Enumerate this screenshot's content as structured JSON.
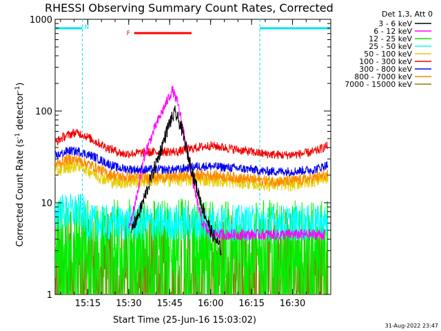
{
  "chart_data": {
    "type": "line",
    "title": "RHESSI Observing Summary Count Rates, Corrected",
    "xlabel": "Start Time (25-Jun-16 15:03:02)",
    "ylabel": "Corrected Count Rate (s⁻¹ detector⁻¹)",
    "ylabel_main": "Corrected Count Rate (s",
    "ylabel_sup1": "-1",
    "ylabel_mid": " detector",
    "ylabel_sup2": "-1",
    "ylabel_end": ")",
    "yscale": "log",
    "ylim": [
      1,
      1000
    ],
    "xlim": [
      "15:03:02",
      "16:44:00"
    ],
    "x_ticks": [
      "15:15",
      "15:30",
      "15:45",
      "16:00",
      "16:15",
      "16:30"
    ],
    "y_ticks": [
      "1",
      "10",
      "100",
      "1000"
    ],
    "legend_title": "Det 1,3, Att 0",
    "legend_position": "right",
    "timestamp": "31-Aug-2022 23:47",
    "markers": {
      "night_color": "#00e5ee",
      "night_label": "N",
      "flare_label": "F",
      "flare_color": "#ff0000",
      "night_intervals": [
        [
          "15:03",
          "15:13"
        ],
        [
          "16:18",
          "16:44"
        ]
      ],
      "flare_interval": [
        "15:32",
        "15:53"
      ]
    },
    "series": [
      {
        "name": "3 - 6 keV",
        "color": "#000000",
        "points": [
          [
            "15:31",
            5
          ],
          [
            "15:34",
            8
          ],
          [
            "15:38",
            18
          ],
          [
            "15:42",
            40
          ],
          [
            "15:45",
            75
          ],
          [
            "15:47",
            95
          ],
          [
            "15:49",
            70
          ],
          [
            "15:51",
            40
          ],
          [
            "15:54",
            18
          ],
          [
            "15:57",
            9
          ],
          [
            "16:00",
            5
          ],
          [
            "16:04",
            3
          ]
        ]
      },
      {
        "name": "6 - 12 keV",
        "color": "#ff00ff",
        "points": [
          [
            "15:30",
            5
          ],
          [
            "15:33",
            12
          ],
          [
            "15:36",
            35
          ],
          [
            "15:40",
            70
          ],
          [
            "15:43",
            110
          ],
          [
            "15:46",
            170
          ],
          [
            "15:48",
            120
          ],
          [
            "15:51",
            45
          ],
          [
            "15:54",
            14
          ],
          [
            "15:57",
            6
          ],
          [
            "16:00",
            4.5
          ],
          [
            "16:10",
            4.5
          ],
          [
            "16:30",
            4.5
          ],
          [
            "16:42",
            4.5
          ]
        ]
      },
      {
        "name": "12 - 25 keV",
        "color": "#00ee00",
        "points": [
          [
            "15:03",
            4
          ],
          [
            "15:15",
            4
          ],
          [
            "15:30",
            4
          ],
          [
            "15:45",
            4
          ],
          [
            "16:00",
            4
          ],
          [
            "16:15",
            4
          ],
          [
            "16:30",
            4
          ],
          [
            "16:43",
            4
          ]
        ]
      },
      {
        "name": "25 - 50 keV",
        "color": "#00ffff",
        "points": [
          [
            "15:03",
            8
          ],
          [
            "15:13",
            8
          ],
          [
            "15:15",
            6
          ],
          [
            "15:30",
            6
          ],
          [
            "15:45",
            6
          ],
          [
            "16:00",
            6
          ],
          [
            "16:15",
            6
          ],
          [
            "16:30",
            6
          ],
          [
            "16:43",
            6
          ]
        ]
      },
      {
        "name": "50 - 100 keV",
        "color": "#e6cc00",
        "points": [
          [
            "15:03",
            22
          ],
          [
            "15:08",
            25
          ],
          [
            "15:12",
            26
          ],
          [
            "15:15",
            23
          ],
          [
            "15:20",
            19
          ],
          [
            "15:25",
            17
          ],
          [
            "15:30",
            17
          ],
          [
            "15:40",
            18
          ],
          [
            "15:50",
            18
          ],
          [
            "16:00",
            18
          ],
          [
            "16:10",
            17
          ],
          [
            "16:20",
            16
          ],
          [
            "16:30",
            16
          ],
          [
            "16:43",
            19
          ]
        ]
      },
      {
        "name": "100 - 300 keV",
        "color": "#ee0000",
        "points": [
          [
            "15:03",
            45
          ],
          [
            "15:06",
            52
          ],
          [
            "15:10",
            58
          ],
          [
            "15:13",
            56
          ],
          [
            "15:17",
            48
          ],
          [
            "15:22",
            40
          ],
          [
            "15:28",
            34
          ],
          [
            "15:34",
            35
          ],
          [
            "15:42",
            36
          ],
          [
            "15:48",
            36
          ],
          [
            "15:55",
            40
          ],
          [
            "16:00",
            42
          ],
          [
            "16:05",
            40
          ],
          [
            "16:12",
            37
          ],
          [
            "16:20",
            34
          ],
          [
            "16:27",
            33
          ],
          [
            "16:33",
            34
          ],
          [
            "16:38",
            36
          ],
          [
            "16:43",
            42
          ]
        ]
      },
      {
        "name": "300 - 800 keV",
        "color": "#0000ee",
        "points": [
          [
            "15:03",
            32
          ],
          [
            "15:08",
            37
          ],
          [
            "15:12",
            36
          ],
          [
            "15:17",
            32
          ],
          [
            "15:22",
            27
          ],
          [
            "15:26",
            24
          ],
          [
            "15:32",
            23
          ],
          [
            "15:40",
            23
          ],
          [
            "15:48",
            23
          ],
          [
            "15:55",
            25
          ],
          [
            "16:00",
            25
          ],
          [
            "16:08",
            24
          ],
          [
            "16:15",
            23
          ],
          [
            "16:20",
            22
          ],
          [
            "16:30",
            22
          ],
          [
            "16:38",
            23
          ],
          [
            "16:43",
            26
          ]
        ]
      },
      {
        "name": "800 - 7000 keV",
        "color": "#ff8800",
        "points": [
          [
            "15:03",
            26
          ],
          [
            "15:08",
            30
          ],
          [
            "15:12",
            29
          ],
          [
            "15:17",
            25
          ],
          [
            "15:22",
            21
          ],
          [
            "15:28",
            19
          ],
          [
            "15:35",
            19
          ],
          [
            "15:45",
            19
          ],
          [
            "15:55",
            20
          ],
          [
            "16:00",
            20
          ],
          [
            "16:08",
            19
          ],
          [
            "16:15",
            18
          ],
          [
            "16:25",
            17
          ],
          [
            "16:35",
            18
          ],
          [
            "16:43",
            20
          ]
        ]
      },
      {
        "name": "7000 - 15000 keV",
        "color": "#808000",
        "points": [
          [
            "15:03",
            2
          ],
          [
            "15:15",
            2
          ],
          [
            "15:30",
            2
          ],
          [
            "15:45",
            2
          ],
          [
            "16:00",
            2
          ],
          [
            "16:15",
            2
          ],
          [
            "16:30",
            2
          ],
          [
            "16:43",
            2
          ]
        ]
      }
    ]
  }
}
